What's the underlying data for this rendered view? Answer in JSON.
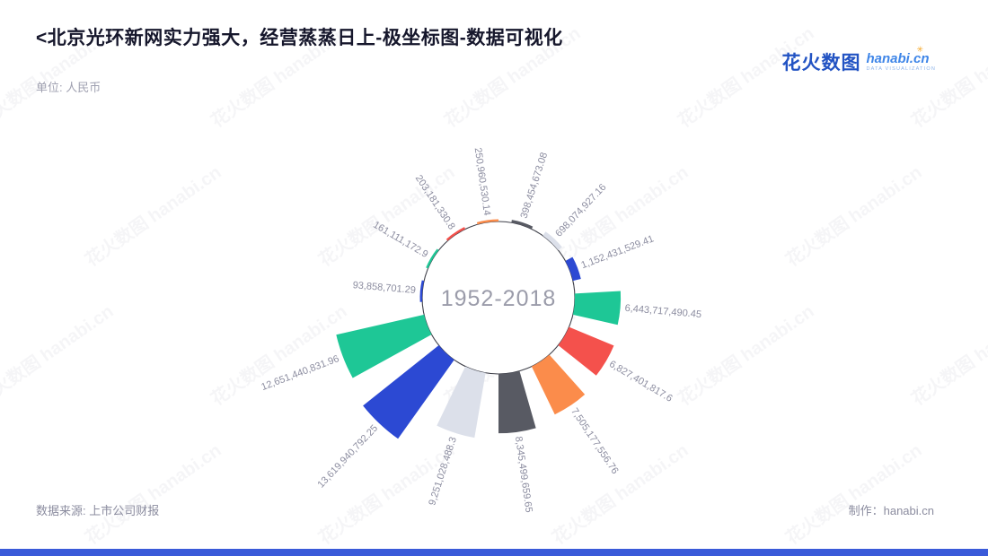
{
  "header": {
    "title": "<北京光环新网实力强大，经营蒸蒸日上-极坐标图-数据可视化",
    "unit_note": "单位: 人民币"
  },
  "brand": {
    "logo_cn": "花火数图",
    "logo_en": "hanabi.cn",
    "logo_sub": "DATA VISUALIZATION",
    "sparkle": "✳"
  },
  "watermark": {
    "text": "花火数图 hanabi.cn"
  },
  "footer": {
    "source": "数据来源: 上市公司财报",
    "credit": "制作：hanabi.cn"
  },
  "colors": {
    "green": "#1EC796",
    "red": "#F4514C",
    "orange": "#FB8C4B",
    "gray_dark": "#585A63",
    "gray_light": "#DCE0EA",
    "blue": "#2C49D3",
    "circle_stroke": "#3F404A",
    "label_text": "#8C8DA0",
    "center_text": "#9B9CAA"
  },
  "chart_data": {
    "type": "bar",
    "layout": "polar",
    "center_label": "1952-2018",
    "radius_unit": "人民币",
    "start_angle_deg": -8,
    "angle_step_deg": 25.714,
    "bar_half_angle_deg": 8,
    "inner_radius": 85,
    "max_bar_length": 108,
    "grid": false,
    "legend": false,
    "points": [
      {
        "label": "250,960,530.14",
        "value": 250960530.14,
        "color": "orange"
      },
      {
        "label": "398,454,673.08",
        "value": 398454673.08,
        "color": "gray_dark"
      },
      {
        "label": "698,074,927.16",
        "value": 698074927.16,
        "color": "gray_light"
      },
      {
        "label": "1,152,431,529.41",
        "value": 1152431529.41,
        "color": "blue"
      },
      {
        "label": "6,443,717,490.45",
        "value": 6443717490.45,
        "color": "green"
      },
      {
        "label": "6,827,401,817.6",
        "value": 6827401817.6,
        "color": "red"
      },
      {
        "label": "7,505,177,556.76",
        "value": 7505177556.76,
        "color": "orange"
      },
      {
        "label": "8,345,499,659.65",
        "value": 8345499659.65,
        "color": "gray_dark"
      },
      {
        "label": "9,251,028,488.3",
        "value": 9251028488.3,
        "color": "gray_light"
      },
      {
        "label": "13,619,940,792.25",
        "value": 13619940792.25,
        "color": "blue"
      },
      {
        "label": "12,651,440,831.96",
        "value": 12651440831.96,
        "color": "green"
      },
      {
        "label": "93,858,701.29",
        "value": 93858701.29,
        "color": "blue"
      },
      {
        "label": "161,111,172.9",
        "value": 161111172.9,
        "color": "green"
      },
      {
        "label": "203,181,330.8",
        "value": 203181330.8,
        "color": "red"
      }
    ]
  }
}
